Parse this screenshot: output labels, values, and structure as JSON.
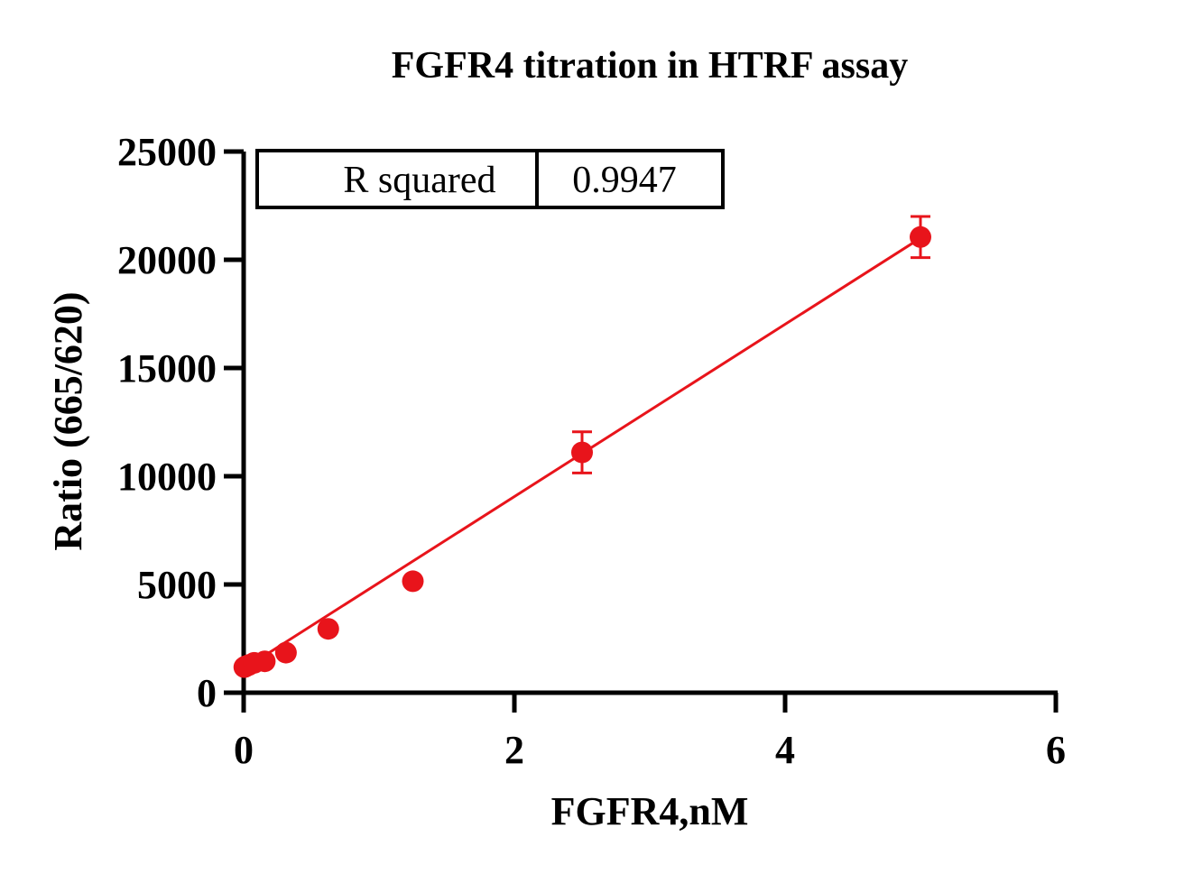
{
  "chart_data": {
    "type": "scatter",
    "title": "FGFR4 titration in HTRF assay",
    "xlabel": "FGFR4,nM",
    "ylabel": "Ratio (665/620)",
    "xlim": [
      0,
      6
    ],
    "ylim": [
      0,
      25000
    ],
    "x_ticks": [
      "0",
      "2",
      "4",
      "6"
    ],
    "y_ticks": [
      "0",
      "5000",
      "10000",
      "15000",
      "20000",
      "25000"
    ],
    "grid": false,
    "series": [
      {
        "x": [
          0.0049,
          0.0098,
          0.0195,
          0.039,
          0.078,
          0.156,
          0.3125,
          0.625,
          1.25,
          2.5,
          5.0
        ],
        "y": [
          1180,
          1200,
          1230,
          1280,
          1380,
          1450,
          1850,
          2950,
          5150,
          11100,
          21050
        ],
        "error": [
          0,
          0,
          0,
          0,
          0,
          0,
          0,
          0,
          0,
          950,
          950
        ],
        "fit_line": {
          "type": "linear",
          "x": [
            0,
            5.0
          ],
          "y": [
            1100,
            21000
          ]
        }
      }
    ],
    "colors": {
      "series": "#e8141b",
      "axis": "#000000"
    },
    "stats_table": {
      "label": "R squared",
      "value": "0.9947"
    }
  }
}
